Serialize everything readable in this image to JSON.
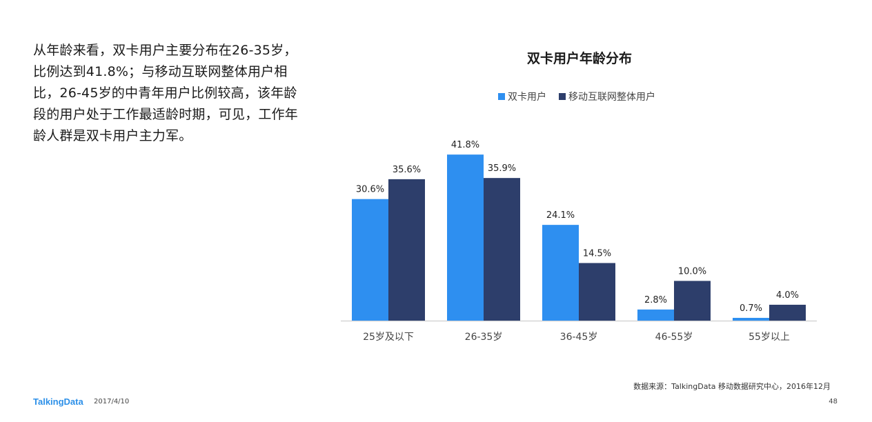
{
  "intro_text": "从年龄来看，双卡用户主要分布在26-35岁，比例达到41.8%；与移动互联网整体用户相比，26-45岁的中青年用户比例较高，该年龄段的用户处于工作最适龄时期，可见，工作年龄人群是双卡用户主力军。",
  "footer": {
    "source": "数据来源：TalkingData 移动数据研究中心，2016年12月",
    "logo": "TalkingData",
    "date": "2017/4/10",
    "page": "48"
  },
  "colors": {
    "series_a": "#2e8ff0",
    "series_b": "#2d3e6b",
    "axis": "#d6d6d6"
  },
  "chart_data": {
    "type": "bar",
    "title": "双卡用户年龄分布",
    "categories": [
      "25岁及以下",
      "26-35岁",
      "36-45岁",
      "46-55岁",
      "55岁以上"
    ],
    "series": [
      {
        "name": "双卡用户",
        "values": [
          30.6,
          41.8,
          24.1,
          2.8,
          0.7
        ]
      },
      {
        "name": "移动互联网整体用户",
        "values": [
          35.6,
          35.9,
          14.5,
          10.0,
          4.0
        ]
      }
    ],
    "data_labels": [
      [
        "30.6%",
        "41.8%",
        "24.1%",
        "2.8%",
        "0.7%"
      ],
      [
        "35.6%",
        "35.9%",
        "14.5%",
        "10.0%",
        "4.0%"
      ]
    ],
    "ylim": [
      0,
      42
    ],
    "grid": false,
    "legend_position": "top"
  }
}
